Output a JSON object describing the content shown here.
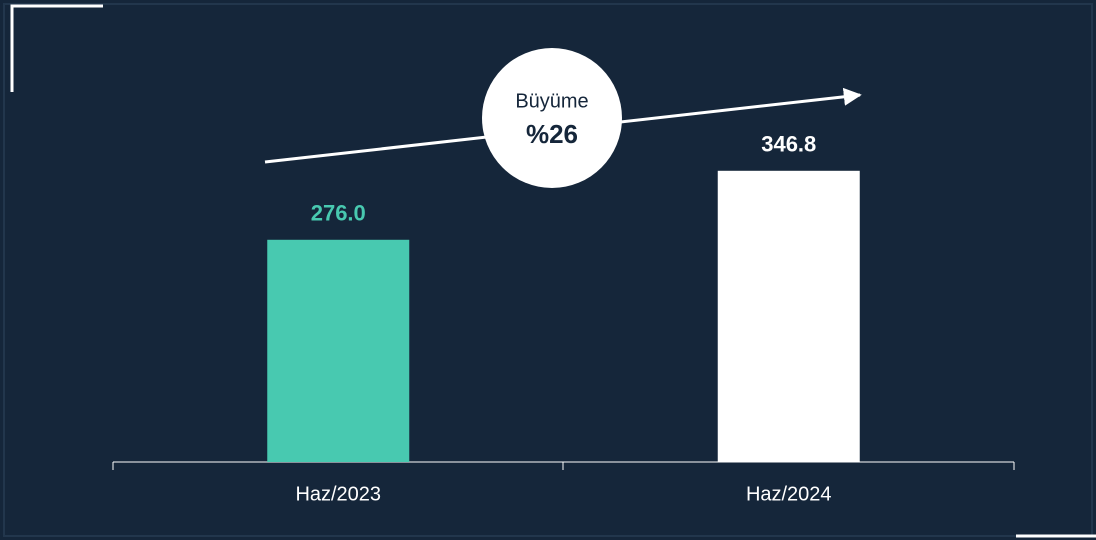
{
  "chart_data": {
    "type": "bar",
    "categories": [
      "Haz/2023",
      "Haz/2024"
    ],
    "values": [
      276.0,
      346.8
    ],
    "value_labels": [
      "276.0",
      "346.8"
    ],
    "colors": [
      "#48c9b0",
      "#ffffff"
    ],
    "ylim": [
      50,
      480
    ],
    "annotations": [
      "Büyüme",
      "%26"
    ]
  }
}
